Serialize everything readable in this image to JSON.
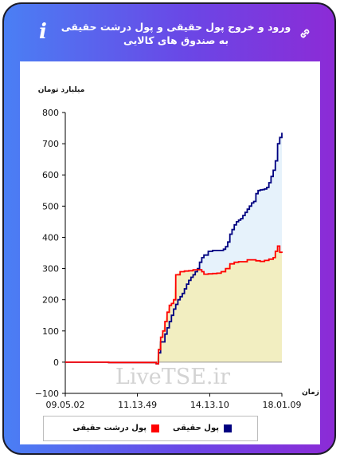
{
  "header": {
    "title": "ورود و خروج پول حقیقی و پول درشت حقیقی به صندوق های کالایی",
    "info_icon": "info-icon",
    "link_icon": "link-icon"
  },
  "watermark": "LiveTSE.ir",
  "chart_data": {
    "type": "area",
    "ylabel": "میلیارد تومان",
    "xlabel": "زمان",
    "ylim": [
      -100,
      800
    ],
    "yticks": [
      -100,
      0,
      100,
      200,
      300,
      400,
      500,
      600,
      700,
      800
    ],
    "xlim": [
      0,
      100
    ],
    "xticks": [
      {
        "pos": 0,
        "label": "09.05.02"
      },
      {
        "pos": 33.3,
        "label": "11.13.49"
      },
      {
        "pos": 66.7,
        "label": "14.13.10"
      },
      {
        "pos": 100,
        "label": "18.01.09"
      }
    ],
    "grid": false,
    "legend_position": "bottom",
    "series": [
      {
        "name": "پول حقیقی",
        "color": "#000080",
        "fill": "#e6f2fb",
        "points": [
          [
            0,
            0
          ],
          [
            20,
            -1
          ],
          [
            42,
            -5
          ],
          [
            43,
            30
          ],
          [
            44,
            65
          ],
          [
            46,
            90
          ],
          [
            47,
            110
          ],
          [
            48,
            130
          ],
          [
            49,
            150
          ],
          [
            50,
            170
          ],
          [
            51,
            185
          ],
          [
            52,
            200
          ],
          [
            53,
            210
          ],
          [
            54,
            220
          ],
          [
            55,
            235
          ],
          [
            56,
            250
          ],
          [
            57,
            262
          ],
          [
            58,
            272
          ],
          [
            59,
            280
          ],
          [
            60,
            290
          ],
          [
            61,
            300
          ],
          [
            62,
            320
          ],
          [
            63,
            335
          ],
          [
            64,
            343
          ],
          [
            66,
            355
          ],
          [
            68,
            358
          ],
          [
            70,
            358
          ],
          [
            72,
            358
          ],
          [
            73,
            362
          ],
          [
            74,
            370
          ],
          [
            75,
            385
          ],
          [
            76,
            410
          ],
          [
            77,
            425
          ],
          [
            78,
            440
          ],
          [
            79,
            450
          ],
          [
            80,
            455
          ],
          [
            81,
            460
          ],
          [
            82,
            470
          ],
          [
            83,
            480
          ],
          [
            84,
            490
          ],
          [
            85,
            500
          ],
          [
            86,
            510
          ],
          [
            87,
            515
          ],
          [
            88,
            540
          ],
          [
            89,
            550
          ],
          [
            90,
            552
          ],
          [
            91,
            553
          ],
          [
            92,
            555
          ],
          [
            93,
            560
          ],
          [
            94,
            575
          ],
          [
            95,
            595
          ],
          [
            96,
            615
          ],
          [
            97,
            645
          ],
          [
            98,
            700
          ],
          [
            99,
            720
          ],
          [
            100,
            735
          ]
        ]
      },
      {
        "name": "پول درشت حقیقی",
        "color": "#ff0000",
        "fill": "#f2eec1",
        "points": [
          [
            0,
            0
          ],
          [
            20,
            -1
          ],
          [
            42,
            -5
          ],
          [
            43,
            40
          ],
          [
            44,
            80
          ],
          [
            45,
            100
          ],
          [
            46,
            130
          ],
          [
            47,
            160
          ],
          [
            48,
            182
          ],
          [
            49,
            188
          ],
          [
            50,
            200
          ],
          [
            51,
            280
          ],
          [
            53,
            290
          ],
          [
            55,
            292
          ],
          [
            57,
            293
          ],
          [
            59,
            296
          ],
          [
            61,
            296
          ],
          [
            63,
            290
          ],
          [
            64,
            282
          ],
          [
            66,
            283
          ],
          [
            68,
            284
          ],
          [
            70,
            285
          ],
          [
            72,
            290
          ],
          [
            74,
            300
          ],
          [
            76,
            315
          ],
          [
            78,
            320
          ],
          [
            80,
            322
          ],
          [
            82,
            322
          ],
          [
            84,
            328
          ],
          [
            86,
            328
          ],
          [
            88,
            325
          ],
          [
            90,
            323
          ],
          [
            92,
            326
          ],
          [
            94,
            330
          ],
          [
            96,
            335
          ],
          [
            97,
            355
          ],
          [
            98,
            372
          ],
          [
            99,
            352
          ],
          [
            100,
            350
          ]
        ]
      }
    ]
  }
}
